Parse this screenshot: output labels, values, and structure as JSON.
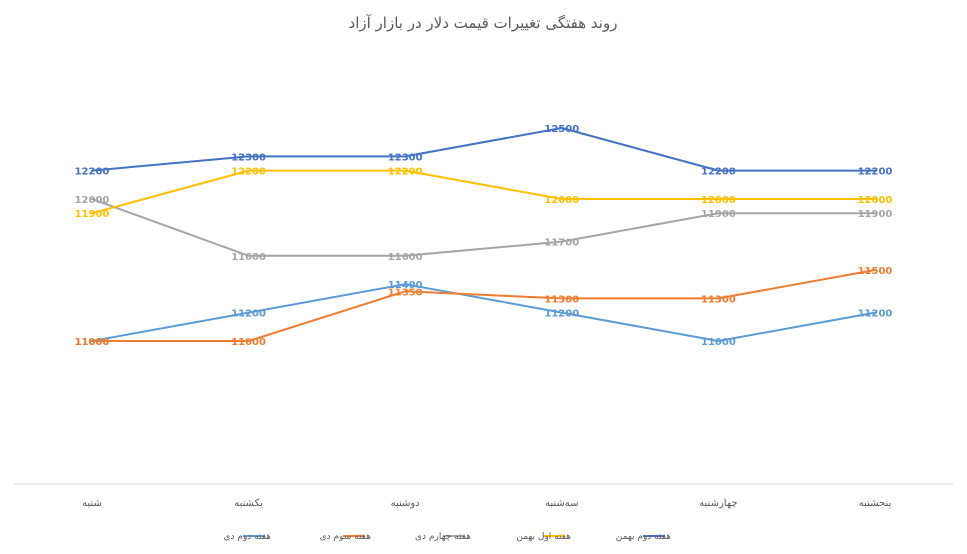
{
  "chart_data": {
    "type": "line",
    "title": "روند هفتگی تغییرات قیمت دلار در بازار آزاد",
    "categories": [
      "شنبه",
      "یکشنبه",
      "دوشنبه",
      "سه‌شنبه",
      "چهارشنبه",
      "پنجشنبه"
    ],
    "xlabel": "",
    "ylabel": "",
    "ylim": [
      9500,
      13000
    ],
    "grid": false,
    "legend_position": "bottom",
    "series": [
      {
        "name": "هفته دوم دی",
        "color": "#5B9BD5",
        "values": [
          11000,
          11200,
          11400,
          11200,
          11000,
          11200
        ]
      },
      {
        "name": "هفته سوم دی",
        "color": "#ED7D31",
        "values": [
          11000,
          11000,
          11350,
          11300,
          11300,
          11500
        ]
      },
      {
        "name": "هفته چهارم دی",
        "color": "#A5A5A5",
        "values": [
          12000,
          11600,
          11600,
          11700,
          11900,
          11900
        ]
      },
      {
        "name": "هفته اول بهمن",
        "color": "#FFC000",
        "values": [
          11900,
          12200,
          12200,
          12000,
          12000,
          12000
        ]
      },
      {
        "name": "هفته دوم بهمن",
        "color": "#4472C4",
        "values": [
          12200,
          12300,
          12300,
          12500,
          12200,
          12200
        ]
      }
    ]
  }
}
